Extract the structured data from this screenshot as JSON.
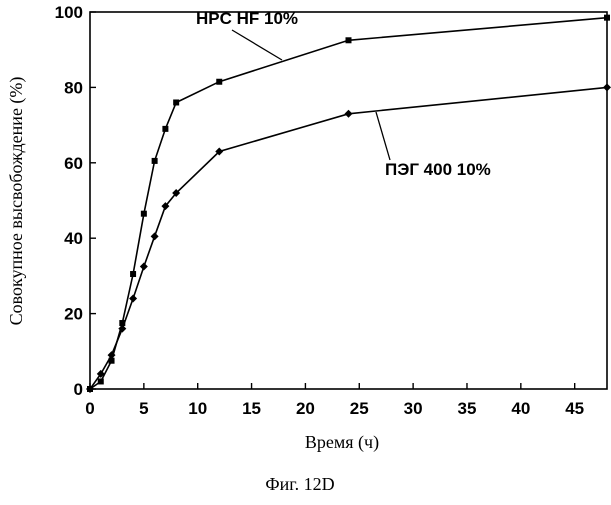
{
  "chart_data": {
    "type": "line",
    "title": "",
    "xlabel": "Время (ч)",
    "ylabel": "Совокупное высвобождение (%)",
    "caption": "Фиг. 12D",
    "xlim": [
      0,
      48
    ],
    "ylim": [
      0,
      100
    ],
    "xticks": [
      0,
      5,
      10,
      15,
      20,
      25,
      30,
      35,
      40,
      45
    ],
    "yticks": [
      0,
      20,
      40,
      60,
      80,
      100
    ],
    "grid": false,
    "legend": "none",
    "series": [
      {
        "name": "HPC HF 10%",
        "marker": "square",
        "color": "#000000",
        "x": [
          0,
          1,
          2,
          3,
          4,
          5,
          6,
          7,
          8,
          12,
          24,
          48
        ],
        "y": [
          0,
          2,
          7.5,
          17.5,
          30.5,
          46.5,
          60.5,
          69,
          76,
          81.5,
          92.5,
          98.5
        ]
      },
      {
        "name": "ПЭГ 400 10%",
        "marker": "diamond",
        "color": "#000000",
        "x": [
          0,
          1,
          2,
          3,
          4,
          5,
          6,
          7,
          8,
          12,
          24,
          48
        ],
        "y": [
          0,
          4,
          9,
          16,
          24,
          32.5,
          40.5,
          48.5,
          52,
          63,
          73,
          80
        ]
      }
    ],
    "annotations": [
      {
        "text": "HPC HF 10%",
        "series": 0
      },
      {
        "text": "ПЭГ 400 10%",
        "series": 1
      }
    ]
  }
}
